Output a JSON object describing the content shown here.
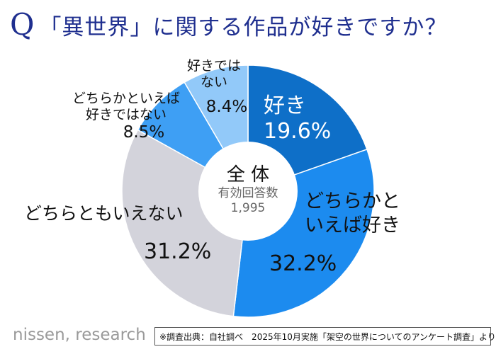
{
  "title": {
    "q": "Q",
    "text": "「異世界」に関する作品が好きですか？"
  },
  "chart_data": {
    "type": "pie",
    "donut": true,
    "center": {
      "label": "全 体",
      "sublabel": "有効回答数",
      "n": "1,995"
    },
    "slices": [
      {
        "label": "好き",
        "value": 19.6,
        "text": "19.6%",
        "color": "#0e6fc8"
      },
      {
        "label": "どちらかと\nいえば好き",
        "value": 32.2,
        "text": "32.2%",
        "color": "#1c8bef"
      },
      {
        "label": "どちらともいえない",
        "value": 31.2,
        "text": "31.2%",
        "color": "#d3d3db"
      },
      {
        "label": "どちらかといえば\n好きではない",
        "value": 8.5,
        "text": "8.5%",
        "color": "#3e9ff4"
      },
      {
        "label": "好きでは\nない",
        "value": 8.4,
        "text": "8.4%",
        "color": "#92c9f9"
      }
    ]
  },
  "footer": {
    "brand": "nissen, research",
    "source": "※調査出典：自社調べ　2025年10月実施「架空の世界についてのアンケート調査」より"
  }
}
